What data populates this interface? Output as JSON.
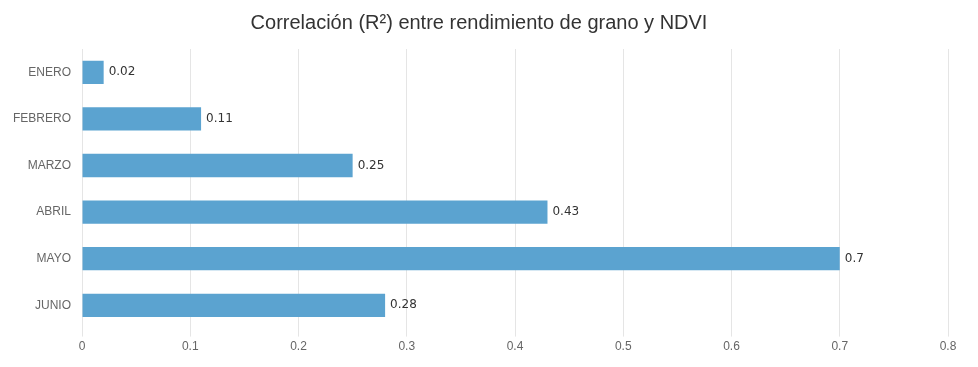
{
  "chart_data": {
    "type": "bar",
    "title": "Correlación (R²) entre rendimiento de grano y NDVI",
    "orientation": "horizontal",
    "categories": [
      "ENERO",
      "FEBRERO",
      "MARZO",
      "ABRIL",
      "MAYO",
      "JUNIO"
    ],
    "values": [
      0.02,
      0.11,
      0.25,
      0.43,
      0.7,
      0.28
    ],
    "color": "#5BA3D0",
    "xlim": [
      0,
      0.8
    ],
    "xticks": [
      0,
      0.1,
      0.2,
      0.3,
      0.4,
      0.5,
      0.6,
      0.7,
      0.8
    ],
    "grid": true,
    "data_labels": true
  }
}
